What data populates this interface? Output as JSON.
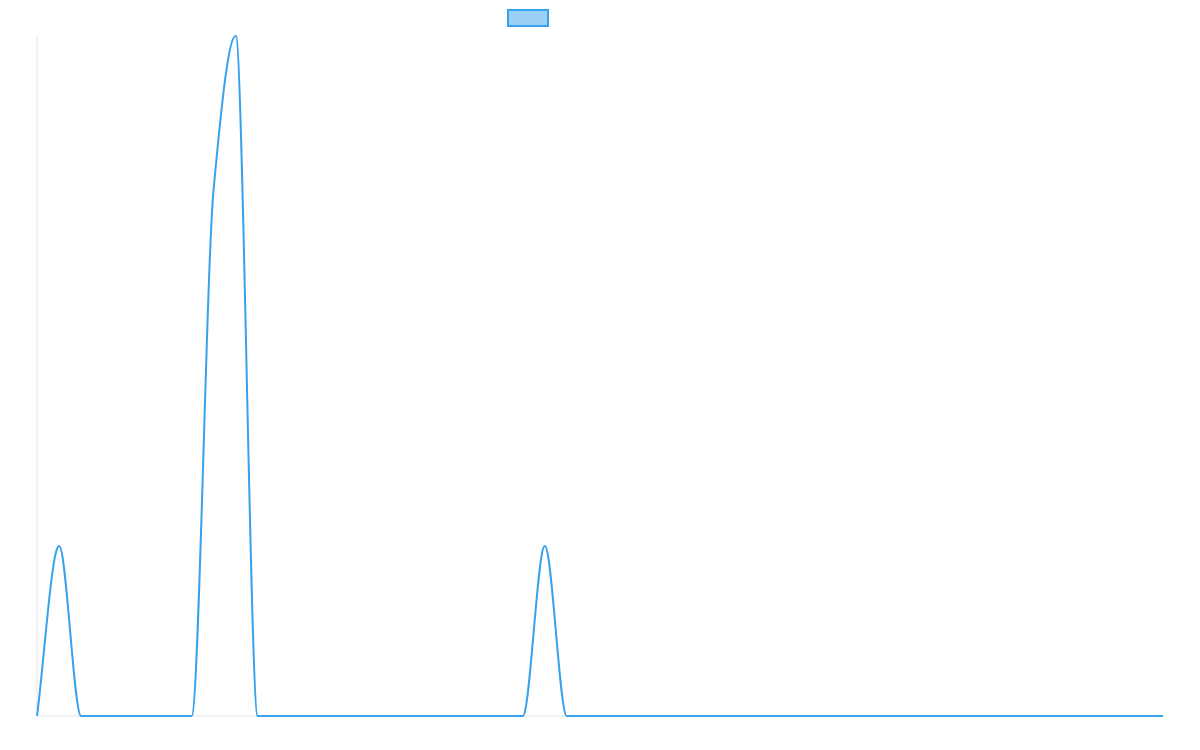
{
  "chart_data": {
    "type": "line",
    "title": "",
    "xlabel": "",
    "ylabel": "",
    "x": [
      0,
      1,
      2,
      3,
      4,
      5,
      6,
      7,
      8,
      9,
      10,
      11,
      12,
      13,
      14,
      15,
      16,
      17,
      18,
      19,
      20,
      21,
      22,
      23,
      24,
      25,
      26,
      27,
      28,
      29,
      30,
      31,
      32,
      33,
      34,
      35,
      36,
      37,
      38,
      39,
      40,
      41,
      42,
      43,
      44,
      45,
      46,
      47,
      48,
      49,
      50,
      51
    ],
    "xlim": [
      0,
      51
    ],
    "ylim": [
      0,
      4
    ],
    "grid": false,
    "legend": "top-center",
    "series": [
      {
        "name": "",
        "color": "#36a2eb",
        "fill": "#9ad0f5",
        "values": [
          0,
          1,
          0,
          0,
          0,
          0,
          0,
          0,
          3.1,
          4,
          0,
          0,
          0,
          0,
          0,
          0,
          0,
          0,
          0,
          0,
          0,
          0,
          0,
          1,
          0,
          0,
          0,
          0,
          0,
          0,
          0,
          0,
          0,
          0,
          0,
          0,
          0,
          0,
          0,
          0,
          0,
          0,
          0,
          0,
          0,
          0,
          0,
          0,
          0,
          0,
          0,
          0
        ]
      }
    ]
  }
}
